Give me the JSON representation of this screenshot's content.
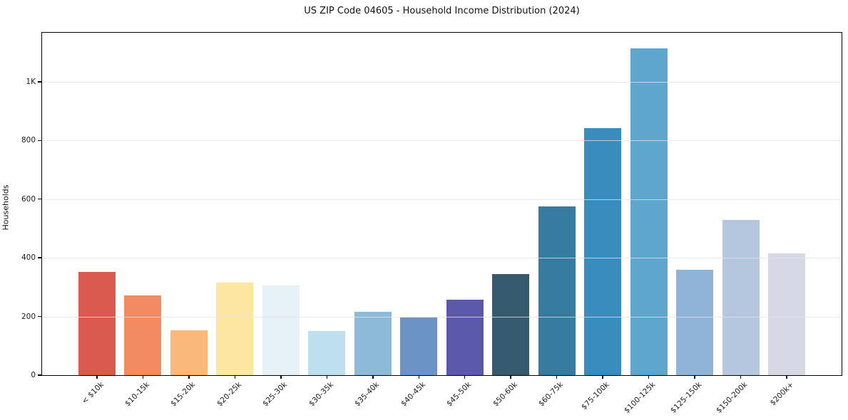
{
  "page": {
    "background": "#ffffff",
    "text_color": "#1a1a1a",
    "spine_color": "#000000",
    "grid_color": "#e4e4eb"
  },
  "chart_data": {
    "type": "bar",
    "title": "US ZIP Code 04605 - Household Income Distribution (2024)",
    "xlabel": "",
    "ylabel": "Households",
    "legend": "none",
    "grid": "horizontal",
    "ylim": [
      0,
      1167
    ],
    "categories": [
      "< $10k",
      "$10-15k",
      "$15-20k",
      "$20-25k",
      "$25-30k",
      "$30-35k",
      "$35-40k",
      "$40-45k",
      "$45-50k",
      "$50-60k",
      "$60-75k",
      "$75-100k",
      "$100-125k",
      "$125-150k",
      "$150-200k",
      "$200k+"
    ],
    "values": [
      352,
      272,
      153,
      315,
      306,
      150,
      216,
      197,
      258,
      344,
      576,
      843,
      1114,
      360,
      529,
      415
    ],
    "bar_colors": [
      "#db5a50",
      "#f28a62",
      "#fab87b",
      "#fce6a2",
      "#e6f2f6",
      "#bedfee",
      "#8ebada",
      "#6b93c4",
      "#5b5aaa",
      "#365a6e",
      "#367ba0",
      "#388cbe",
      "#5fa6cc",
      "#8fb4d7",
      "#b4c7de",
      "#d7d8e6"
    ],
    "yticks": [
      {
        "value": 0,
        "label": "0"
      },
      {
        "value": 200,
        "label": "200"
      },
      {
        "value": 400,
        "label": "400"
      },
      {
        "value": 600,
        "label": "600"
      },
      {
        "value": 800,
        "label": "800"
      },
      {
        "value": 1000,
        "label": "1K"
      }
    ]
  }
}
